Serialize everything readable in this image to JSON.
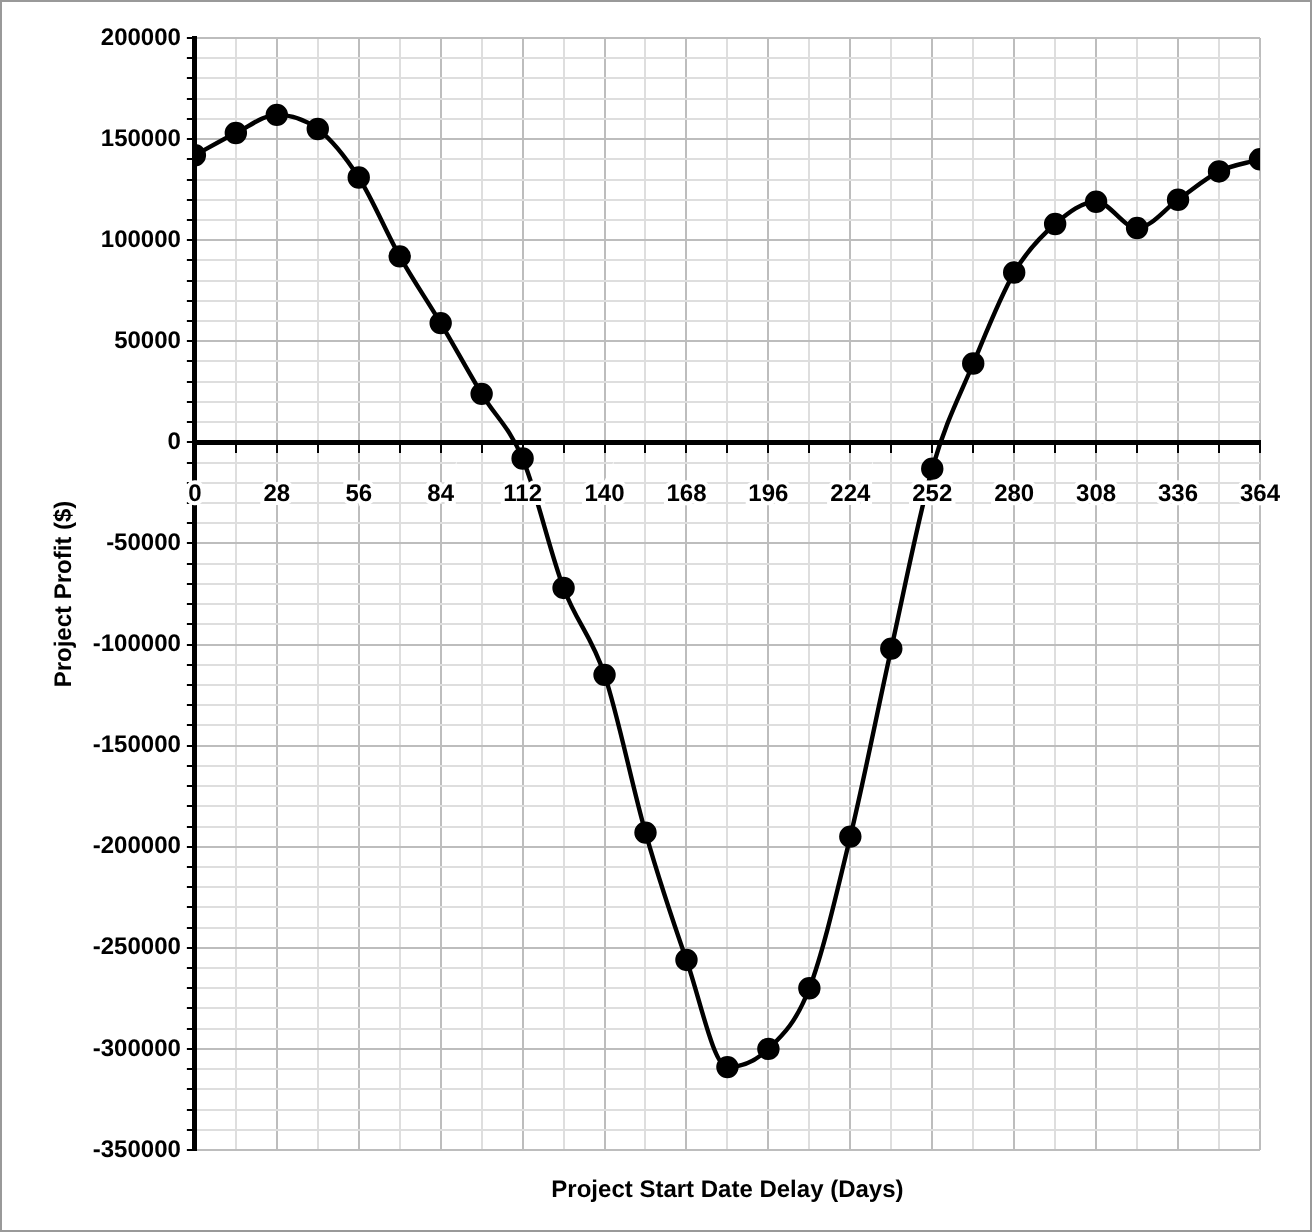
{
  "chart_data": {
    "type": "line",
    "xlabel": "Project Start Date Delay (Days)",
    "ylabel": "Project Profit ($)",
    "x": [
      0,
      14,
      28,
      42,
      56,
      70,
      84,
      98,
      112,
      126,
      140,
      154,
      168,
      182,
      196,
      210,
      224,
      238,
      252,
      266,
      280,
      294,
      308,
      322,
      336,
      350,
      364
    ],
    "series": [
      {
        "color": "#000000",
        "values": [
          142000,
          153000,
          162000,
          155000,
          131000,
          92000,
          59000,
          24000,
          -8000,
          -72000,
          -115000,
          -193000,
          -256000,
          -309000,
          -300000,
          -270000,
          -195000,
          -102000,
          -13000,
          39000,
          84000,
          108000,
          119000,
          106000,
          120000,
          134000,
          140000
        ]
      }
    ],
    "xlim": [
      0,
      364
    ],
    "xticks": [
      0,
      {
        "value": 14,
        "label": null
      },
      28,
      {
        "value": 42,
        "label": null
      },
      56,
      {
        "value": 70,
        "label": null
      },
      84,
      {
        "value": 98,
        "label": null
      },
      112,
      {
        "value": 126,
        "label": null
      },
      140,
      {
        "value": 154,
        "label": null
      },
      168,
      {
        "value": 182,
        "label": null
      },
      196,
      {
        "value": 210,
        "label": null
      },
      224,
      {
        "value": 238,
        "label": null
      },
      252,
      {
        "value": 266,
        "label": null
      },
      280,
      {
        "value": 294,
        "label": null
      },
      308,
      {
        "value": 322,
        "label": null
      },
      336,
      {
        "value": 350,
        "label": null
      },
      364
    ],
    "ylim": [
      -350000,
      200000
    ],
    "yticks": [
      -350000,
      {
        "value": -340000,
        "label": null
      },
      {
        "value": -330000,
        "label": null
      },
      {
        "value": -320000,
        "label": null
      },
      {
        "value": -310000,
        "label": null
      },
      -300000,
      {
        "value": -290000,
        "label": null
      },
      {
        "value": -280000,
        "label": null
      },
      {
        "value": -270000,
        "label": null
      },
      {
        "value": -260000,
        "label": null
      },
      -250000,
      {
        "value": -240000,
        "label": null
      },
      {
        "value": -230000,
        "label": null
      },
      {
        "value": -220000,
        "label": null
      },
      {
        "value": -210000,
        "label": null
      },
      -200000,
      {
        "value": -190000,
        "label": null
      },
      {
        "value": -180000,
        "label": null
      },
      {
        "value": -170000,
        "label": null
      },
      {
        "value": -160000,
        "label": null
      },
      -150000,
      {
        "value": -140000,
        "label": null
      },
      {
        "value": -130000,
        "label": null
      },
      {
        "value": -120000,
        "label": null
      },
      {
        "value": -110000,
        "label": null
      },
      -100000,
      {
        "value": -90000,
        "label": null
      },
      {
        "value": -80000,
        "label": null
      },
      {
        "value": -70000,
        "label": null
      },
      {
        "value": -60000,
        "label": null
      },
      -50000,
      {
        "value": -40000,
        "label": null
      },
      {
        "value": -30000,
        "label": null
      },
      {
        "value": -20000,
        "label": null
      },
      {
        "value": -10000,
        "label": null
      },
      0,
      {
        "value": 10000,
        "label": null
      },
      {
        "value": 20000,
        "label": null
      },
      {
        "value": 30000,
        "label": null
      },
      {
        "value": 40000,
        "label": null
      },
      50000,
      {
        "value": 60000,
        "label": null
      },
      {
        "value": 70000,
        "label": null
      },
      {
        "value": 80000,
        "label": null
      },
      {
        "value": 90000,
        "label": null
      },
      100000,
      {
        "value": 110000,
        "label": null
      },
      {
        "value": 120000,
        "label": null
      },
      {
        "value": 130000,
        "label": null
      },
      {
        "value": 140000,
        "label": null
      },
      150000,
      {
        "value": 160000,
        "label": null
      },
      {
        "value": 170000,
        "label": null
      },
      {
        "value": 180000,
        "label": null
      },
      {
        "value": 190000,
        "label": null
      },
      200000
    ],
    "grid": true,
    "marker": "circle",
    "line_style": "solid"
  }
}
